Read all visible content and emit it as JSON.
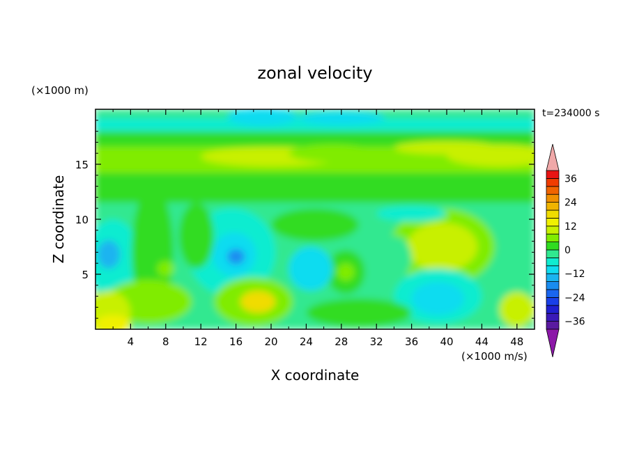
{
  "chart_data": {
    "type": "heatmap",
    "title": "zonal velocity",
    "xlabel": "X coordinate",
    "ylabel": "Z coordinate",
    "x_unit": "(×1000 m/s)",
    "y_unit": "(×1000 m)",
    "time_label": "t=234000 s",
    "xlim": [
      0,
      50
    ],
    "ylim": [
      0,
      20
    ],
    "x_ticks": [
      4,
      8,
      12,
      16,
      20,
      24,
      28,
      32,
      36,
      40,
      44,
      48
    ],
    "y_ticks": [
      5,
      10,
      15
    ],
    "colorbar": {
      "levels": [
        -40,
        -36,
        -32,
        -28,
        -24,
        -20,
        -16,
        -12,
        -8,
        -4,
        0,
        4,
        8,
        12,
        16,
        20,
        24,
        28,
        32,
        36,
        40
      ],
      "labels": [
        36,
        24,
        12,
        0,
        -12,
        -24,
        -36
      ],
      "colors": [
        "#5a1aa0",
        "#3a1ab8",
        "#2020d0",
        "#1a40e8",
        "#1a66f0",
        "#1a8cf0",
        "#1ab4f0",
        "#10dcf0",
        "#10ecd0",
        "#30e890",
        "#30dc20",
        "#80ec00",
        "#c8f000",
        "#f0f000",
        "#f0dc00",
        "#f0b400",
        "#f09000",
        "#f06400",
        "#f03c00",
        "#e81414"
      ],
      "under_color": "#8c18a8",
      "over_color": "#f0a8a8"
    }
  }
}
